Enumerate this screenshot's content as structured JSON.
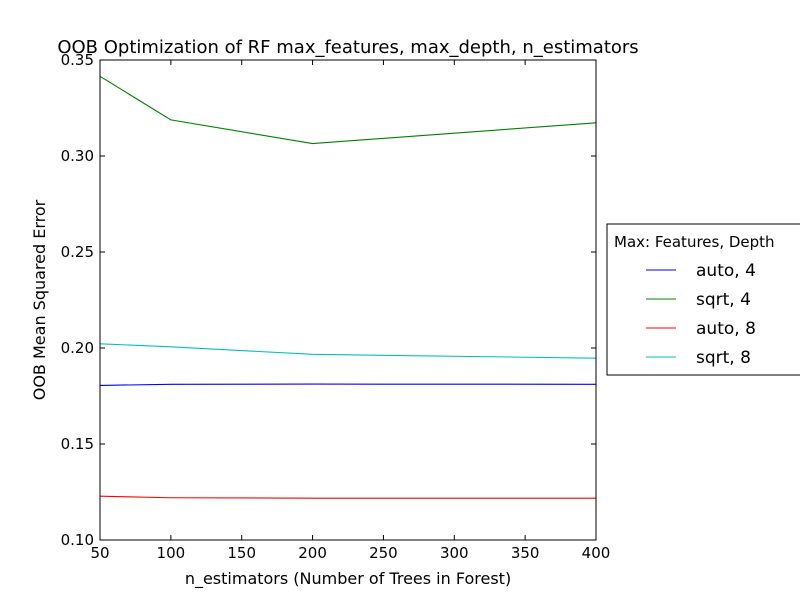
{
  "chart_data": {
    "type": "line",
    "title": "OOB Optimization of RF max_features, max_depth, n_estimators",
    "xlabel": "n_estimators (Number of Trees in Forest)",
    "ylabel": "OOB Mean Squared Error",
    "xlim": [
      50,
      400
    ],
    "ylim": [
      0.1,
      0.35
    ],
    "x": [
      50,
      100,
      200,
      400
    ],
    "x_ticks": [
      50,
      100,
      150,
      200,
      250,
      300,
      350,
      400
    ],
    "x_tick_labels": [
      "50",
      "100",
      "150",
      "200",
      "250",
      "300",
      "350",
      "400"
    ],
    "y_ticks": [
      0.1,
      0.15,
      0.2,
      0.25,
      0.3,
      0.35
    ],
    "y_tick_labels": [
      "0.10",
      "0.15",
      "0.20",
      "0.25",
      "0.30",
      "0.35"
    ],
    "grid": false,
    "legend": {
      "title": "Max: Features, Depth",
      "placement": "outside-right"
    },
    "series": [
      {
        "name": "auto, 4",
        "color": "#0000ff",
        "values": [
          0.1805,
          0.1811,
          0.1812,
          0.1811
        ]
      },
      {
        "name": "sqrt, 4",
        "color": "#008000",
        "values": [
          0.3415,
          0.3188,
          0.3065,
          0.3173
        ]
      },
      {
        "name": "auto, 8",
        "color": "#ff0000",
        "values": [
          0.1228,
          0.122,
          0.1218,
          0.1218
        ]
      },
      {
        "name": "sqrt, 8",
        "color": "#00bfbf",
        "values": [
          0.2022,
          0.2006,
          0.1967,
          0.1947
        ]
      }
    ]
  }
}
